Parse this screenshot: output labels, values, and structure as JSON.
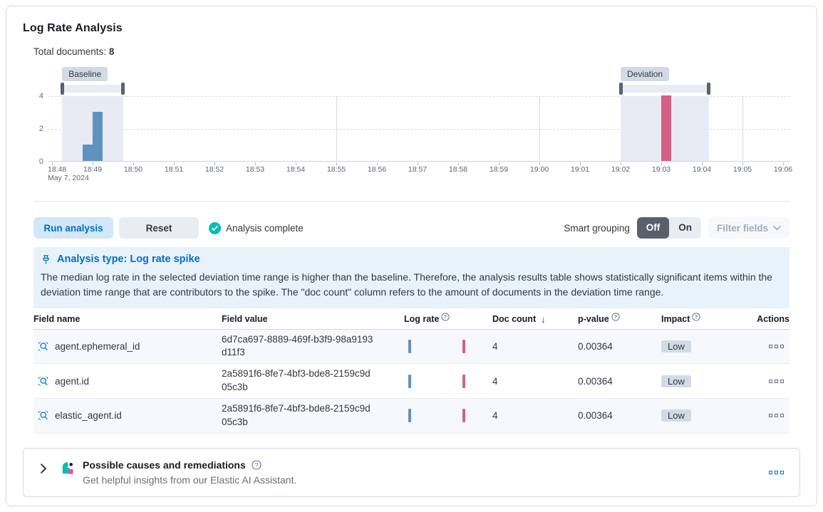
{
  "app": {
    "title": "Log Rate Analysis"
  },
  "summary": {
    "total_documents_label": "Total documents:",
    "total_documents_value": "8"
  },
  "chart": {
    "baseline_label": "Baseline",
    "deviation_label": "Deviation",
    "y_ticks": [
      "4",
      "2",
      "0"
    ],
    "x_ticks": [
      "18:48",
      "18:49",
      "18:50",
      "18:51",
      "18:52",
      "18:53",
      "18:54",
      "18:55",
      "18:56",
      "18:57",
      "18:58",
      "18:59",
      "19:00",
      "19:01",
      "19:02",
      "19:03",
      "19:04",
      "19:05",
      "19:06"
    ],
    "x_date_label": "May 7, 2024",
    "colors": {
      "baseline_bar": "#6092C0",
      "deviation_bar": "#D36086",
      "window_fill": "#E8EBF4"
    }
  },
  "chart_data": {
    "type": "bar",
    "title": "Document count histogram",
    "ylim": [
      0,
      4
    ],
    "y_gridlines": [
      2,
      4
    ],
    "x_range": {
      "start": "18:48",
      "end": "19:06",
      "date": "May 7, 2024"
    },
    "bars": [
      {
        "time": "18:48:45",
        "count": 1,
        "series": "baseline"
      },
      {
        "time": "18:49:00",
        "count": 3,
        "series": "baseline"
      },
      {
        "time": "19:03:00",
        "count": 4,
        "series": "deviation"
      }
    ],
    "baseline_window": {
      "from": "18:48:15",
      "to": "18:49:45"
    },
    "deviation_window": {
      "from": "19:02:00",
      "to": "19:04:10"
    },
    "solid_vertical_gridlines": [
      "18:55",
      "19:00",
      "19:05"
    ]
  },
  "controls": {
    "run_button": "Run analysis",
    "reset_button": "Reset",
    "status": "Analysis complete",
    "smart_grouping_label": "Smart grouping",
    "toggle_off": "Off",
    "toggle_on": "On",
    "filter_fields": "Filter fields"
  },
  "callout": {
    "title": "Analysis type: Log rate spike",
    "body": "The median log rate in the selected deviation time range is higher than the baseline. Therefore, the analysis results table shows statistically significant items within the deviation time range that are contributors to the spike. The \"doc count\" column refers to the amount of documents in the deviation time range."
  },
  "table": {
    "headers": {
      "field_name": "Field name",
      "field_value": "Field value",
      "log_rate": "Log rate",
      "doc_count": "Doc count",
      "p_value": "p-value",
      "impact": "Impact",
      "actions": "Actions"
    },
    "sort_icon": "↓",
    "rows": [
      {
        "field_name": "agent.ephemeral_id",
        "field_value": "6d7ca697-8889-469f-b3f9-98a9193d11f3",
        "doc_count": "4",
        "p_value": "0.00364",
        "impact": "Low"
      },
      {
        "field_name": "agent.id",
        "field_value": "2a5891f6-8fe7-4bf3-bde8-2159c9d05c3b",
        "doc_count": "4",
        "p_value": "0.00364",
        "impact": "Low"
      },
      {
        "field_name": "elastic_agent.id",
        "field_value": "2a5891f6-8fe7-4bf3-bde8-2159c9d05c3b",
        "doc_count": "4",
        "p_value": "0.00364",
        "impact": "Low"
      }
    ]
  },
  "assistant_panel": {
    "title": "Possible causes and remediations",
    "subtitle": "Get helpful insights from our Elastic AI Assistant."
  }
}
